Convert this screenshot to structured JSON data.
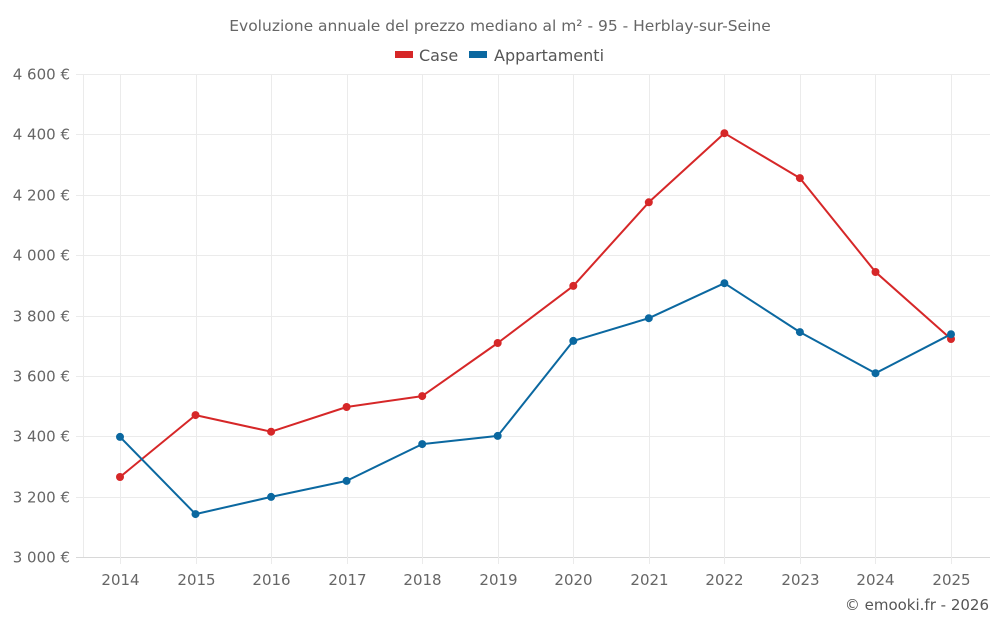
{
  "chart_data": {
    "type": "line",
    "title": "Evoluzione annuale del prezzo mediano al m² - 95 - Herblay-sur-Seine",
    "xlabel": "",
    "ylabel": "",
    "x": [
      "2014",
      "2015",
      "2016",
      "2017",
      "2018",
      "2019",
      "2020",
      "2021",
      "2022",
      "2023",
      "2024",
      "2025"
    ],
    "series": [
      {
        "name": "Case",
        "color": "#d62728",
        "values": [
          3265,
          3470,
          3415,
          3497,
          3533,
          3709,
          3898,
          4175,
          4404,
          4255,
          3944,
          3722
        ]
      },
      {
        "name": "Appartamenti",
        "color": "#0b68a0",
        "values": [
          3398,
          3142,
          3199,
          3252,
          3374,
          3401,
          3716,
          3791,
          3907,
          3745,
          3609,
          3738
        ]
      }
    ],
    "ylim": [
      3000,
      4600
    ],
    "yticks": [
      3000,
      3200,
      3400,
      3600,
      3800,
      4000,
      4200,
      4400,
      4600
    ],
    "ytick_labels": [
      "3 000 €",
      "3 200 €",
      "3 400 €",
      "3 600 €",
      "3 800 €",
      "4 000 €",
      "4 200 €",
      "4 400 €",
      "4 600 €"
    ],
    "grid": true,
    "legend_position": "top-center"
  },
  "credit": "© emooki.fr - 2026",
  "colors": {
    "grid": "#ebebeb",
    "text": "#666666"
  }
}
